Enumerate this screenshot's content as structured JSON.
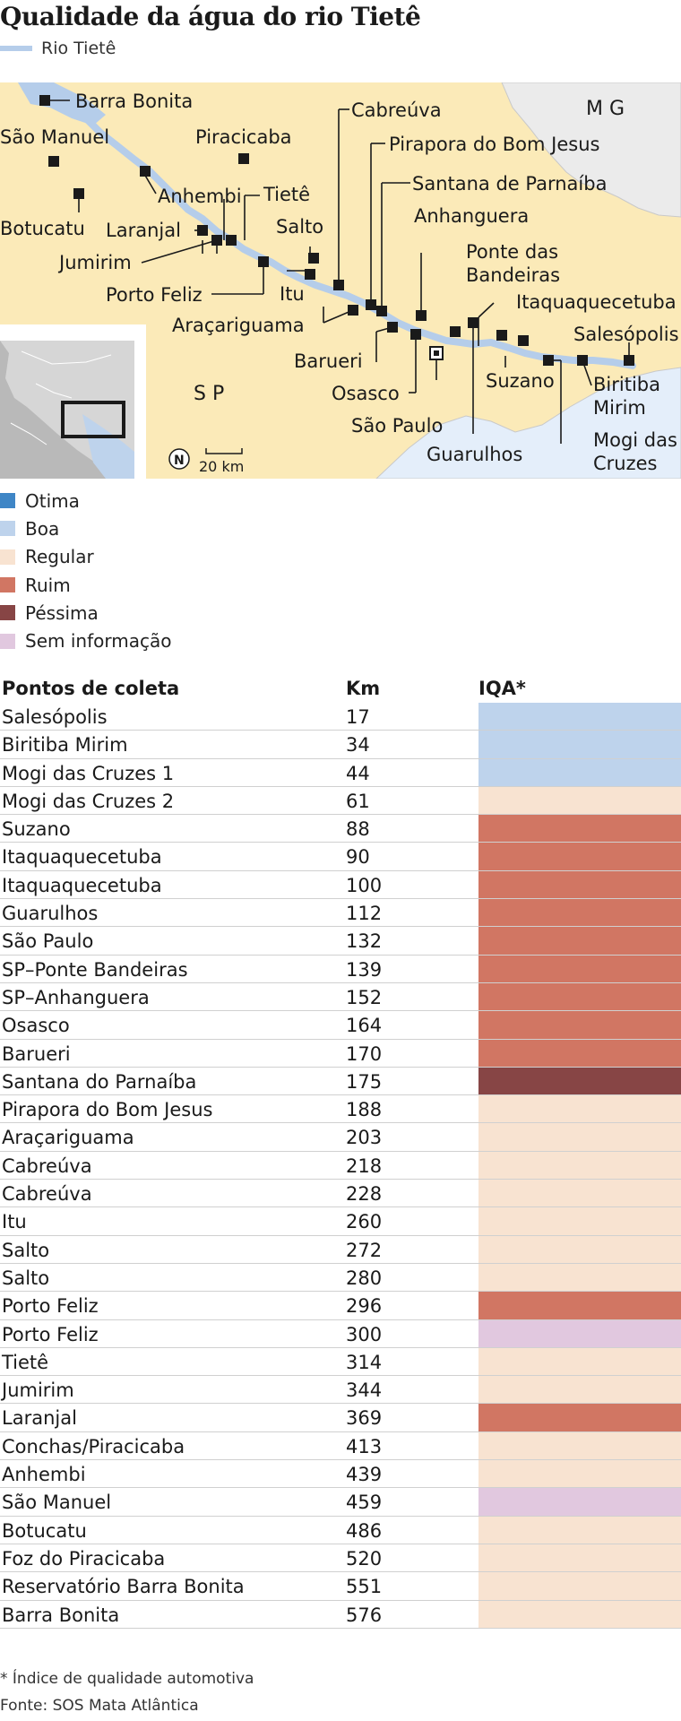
{
  "title": "Qualidade da água do rio Tietê",
  "river_legend": "Rio Tietê",
  "map": {
    "region_labels": {
      "sp": "S P",
      "mg": "M G"
    },
    "scale": "20 km",
    "north": "N",
    "places": [
      "Barra Bonita",
      "São Manuel",
      "Piracicaba",
      "Anhembi",
      "Botucatu",
      "Laranjal",
      "Tietê",
      "Jumirim",
      "Salto",
      "Porto Feliz",
      "Itu",
      "Cabreúva",
      "Pirapora do Bom Jesus",
      "Santana de Parnaíba",
      "Anhanguera",
      "Araçariguama",
      "Ponte das Bandeiras",
      "Itaquaquecetuba",
      "Salesópolis",
      "Barueri",
      "Osasco",
      "Suzano",
      "Biritiba Mirim",
      "São Paulo",
      "Guarulhos",
      "Mogi das Cruzes"
    ]
  },
  "legend": [
    {
      "label": "Otima",
      "color": "#3f86c6"
    },
    {
      "label": "Boa",
      "color": "#bed3ec"
    },
    {
      "label": "Regular",
      "color": "#f8e3d1"
    },
    {
      "label": "Ruim",
      "color": "#d17663"
    },
    {
      "label": "Péssima",
      "color": "#874545"
    },
    {
      "label": "Sem informação",
      "color": "#e1c8df"
    }
  ],
  "table": {
    "headers": {
      "point": "Pontos de coleta",
      "km": "Km",
      "iqa": "IQA*"
    },
    "rows": [
      {
        "name": "Salesópolis",
        "km": "17",
        "quality": "Boa"
      },
      {
        "name": "Biritiba Mirim",
        "km": "34",
        "quality": "Boa"
      },
      {
        "name": "Mogi das Cruzes 1",
        "km": "44",
        "quality": "Boa"
      },
      {
        "name": "Mogi das Cruzes 2",
        "km": "61",
        "quality": "Regular"
      },
      {
        "name": "Suzano",
        "km": "88",
        "quality": "Ruim"
      },
      {
        "name": "Itaquaquecetuba",
        "km": "90",
        "quality": "Ruim"
      },
      {
        "name": "Itaquaquecetuba",
        "km": "100",
        "quality": "Ruim"
      },
      {
        "name": "Guarulhos",
        "km": "112",
        "quality": "Ruim"
      },
      {
        "name": "São Paulo",
        "km": "132",
        "quality": "Ruim"
      },
      {
        "name": "SP–Ponte Bandeiras",
        "km": "139",
        "quality": "Ruim"
      },
      {
        "name": "SP–Anhanguera",
        "km": "152",
        "quality": "Ruim"
      },
      {
        "name": "Osasco",
        "km": "164",
        "quality": "Ruim"
      },
      {
        "name": "Barueri",
        "km": "170",
        "quality": "Ruim"
      },
      {
        "name": "Santana do Parnaíba",
        "km": "175",
        "quality": "Péssima"
      },
      {
        "name": "Pirapora do Bom Jesus",
        "km": "188",
        "quality": "Regular"
      },
      {
        "name": "Araçariguama",
        "km": "203",
        "quality": "Regular"
      },
      {
        "name": "Cabreúva",
        "km": "218",
        "quality": "Regular"
      },
      {
        "name": "Cabreúva",
        "km": "228",
        "quality": "Regular"
      },
      {
        "name": "Itu",
        "km": "260",
        "quality": "Regular"
      },
      {
        "name": "Salto",
        "km": "272",
        "quality": "Regular"
      },
      {
        "name": "Salto",
        "km": "280",
        "quality": "Regular"
      },
      {
        "name": "Porto Feliz",
        "km": "296",
        "quality": "Ruim"
      },
      {
        "name": "Porto Feliz",
        "km": "300",
        "quality": "Sem informação"
      },
      {
        "name": "Tietê",
        "km": "314",
        "quality": "Regular"
      },
      {
        "name": "Jumirim",
        "km": "344",
        "quality": "Regular"
      },
      {
        "name": "Laranjal",
        "km": "369",
        "quality": "Ruim"
      },
      {
        "name": "Conchas/Piracicaba",
        "km": "413",
        "quality": "Regular"
      },
      {
        "name": "Anhembi",
        "km": "439",
        "quality": "Regular"
      },
      {
        "name": "São Manuel",
        "km": "459",
        "quality": "Sem informação"
      },
      {
        "name": "Botucatu",
        "km": "486",
        "quality": "Regular"
      },
      {
        "name": "Foz do Piracicaba",
        "km": "520",
        "quality": "Regular"
      },
      {
        "name": "Reservatório Barra Bonita",
        "km": "551",
        "quality": "Regular"
      },
      {
        "name": "Barra Bonita",
        "km": "576",
        "quality": "Regular"
      }
    ]
  },
  "footnote": "* Índice de qualidade automotiva",
  "source": "Fonte: SOS Mata Atlântica"
}
